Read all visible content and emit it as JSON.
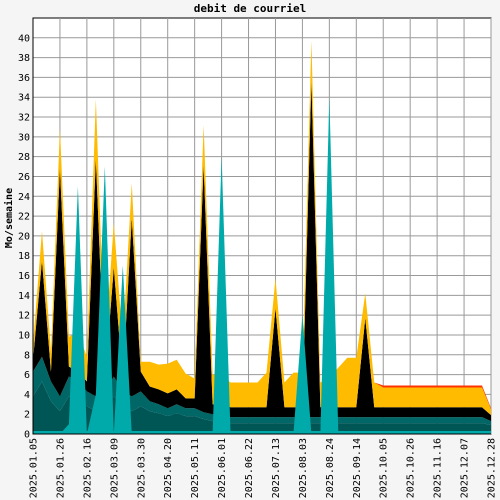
{
  "chart_data": {
    "type": "area",
    "title": "debit de courriel",
    "xlabel": "",
    "ylabel": "Mo/semaine",
    "ylim": [
      0,
      42
    ],
    "yticks": [
      0,
      2,
      4,
      6,
      8,
      10,
      12,
      14,
      16,
      18,
      20,
      22,
      24,
      26,
      28,
      30,
      32,
      34,
      36,
      38,
      40
    ],
    "grid": true,
    "stacked": true,
    "x_ticks": [
      "2025.01.05",
      "2025.01.26",
      "2025.02.16",
      "2025.03.09",
      "2025.03.30",
      "2025.04.20",
      "2025.05.11",
      "2025.06.01",
      "2025.06.22",
      "2025.07.13",
      "2025.08.03",
      "2025.08.24",
      "2025.09.14",
      "2025.10.05",
      "2025.10.26",
      "2025.11.16",
      "2025.12.07",
      "2025.12.28"
    ],
    "x": [
      "2025.01.05",
      "2025.01.12",
      "2025.01.19",
      "2025.01.26",
      "2025.02.02",
      "2025.02.09",
      "2025.02.16",
      "2025.02.23",
      "2025.03.02",
      "2025.03.09",
      "2025.03.16",
      "2025.03.23",
      "2025.03.30",
      "2025.04.06",
      "2025.04.13",
      "2025.04.20",
      "2025.04.27",
      "2025.05.04",
      "2025.05.11",
      "2025.05.18",
      "2025.05.25",
      "2025.06.01",
      "2025.06.08",
      "2025.06.15",
      "2025.06.22",
      "2025.06.29",
      "2025.07.06",
      "2025.07.13",
      "2025.07.20",
      "2025.07.27",
      "2025.08.03",
      "2025.08.10",
      "2025.08.17",
      "2025.08.24",
      "2025.08.31",
      "2025.09.07",
      "2025.09.14",
      "2025.09.21",
      "2025.09.28",
      "2025.10.05",
      "2025.10.12",
      "2025.10.19",
      "2025.10.26",
      "2025.11.02",
      "2025.11.09",
      "2025.11.16",
      "2025.11.23",
      "2025.11.30",
      "2025.12.07",
      "2025.12.14",
      "2025.12.21",
      "2025.12.28"
    ],
    "series": [
      {
        "color": "#00aaaa",
        "values": [
          0.3,
          0.3,
          0.3,
          0.3,
          0.3,
          0.3,
          0.3,
          0.3,
          0.3,
          0.3,
          0.3,
          0.3,
          0.3,
          0.3,
          0.3,
          0.3,
          0.3,
          0.3,
          0.3,
          0.3,
          0.3,
          0.3,
          0.3,
          0.3,
          0.3,
          0.3,
          0.3,
          0.3,
          0.3,
          0.3,
          0.3,
          0.3,
          0.3,
          0.3,
          0.3,
          0.3,
          0.3,
          0.3,
          0.3,
          0.3,
          0.3,
          0.3,
          0.3,
          0.3,
          0.3,
          0.3,
          0.3,
          0.3,
          0.3,
          0.3,
          0.3,
          0.3
        ]
      },
      {
        "color": "#005555",
        "values": [
          3.5,
          5.0,
          3.0,
          2.0,
          3.5,
          3.0,
          2.5,
          2.0,
          2.5,
          3.5,
          2.5,
          2.0,
          2.5,
          2.0,
          1.8,
          1.5,
          1.8,
          1.5,
          1.5,
          1.2,
          1.0,
          1.0,
          0.8,
          0.8,
          0.8,
          0.8,
          0.8,
          0.8,
          0.8,
          0.8,
          0.8,
          0.8,
          0.8,
          0.8,
          0.8,
          0.8,
          0.8,
          0.8,
          0.8,
          0.8,
          0.8,
          0.8,
          0.8,
          0.8,
          0.8,
          0.8,
          0.8,
          0.8,
          0.8,
          0.8,
          0.8,
          0.6
        ]
      },
      {
        "color": "#006666",
        "values": [
          2.5,
          2.5,
          2.0,
          1.5,
          2.0,
          2.0,
          1.5,
          1.5,
          1.5,
          2.0,
          1.5,
          1.5,
          1.5,
          1.0,
          0.9,
          0.8,
          0.9,
          0.8,
          0.8,
          0.7,
          0.7,
          0.6,
          0.6,
          0.6,
          0.6,
          0.6,
          0.6,
          0.6,
          0.6,
          0.6,
          0.6,
          0.6,
          0.6,
          0.6,
          0.6,
          0.6,
          0.6,
          0.6,
          0.6,
          0.6,
          0.6,
          0.6,
          0.6,
          0.6,
          0.6,
          0.6,
          0.6,
          0.6,
          0.6,
          0.6,
          0.6,
          0.4
        ]
      },
      {
        "color": "#000000",
        "values": [
          1.2,
          9.7,
          1.0,
          23.0,
          1.0,
          1.0,
          1.0,
          24.0,
          1.0,
          11.0,
          1.0,
          18.0,
          2.0,
          1.5,
          1.5,
          1.5,
          1.5,
          1.0,
          1.0,
          25.0,
          1.0,
          1.0,
          1.0,
          1.0,
          1.0,
          1.0,
          1.0,
          11.0,
          1.0,
          1.0,
          1.0,
          34.0,
          1.0,
          1.0,
          1.0,
          1.0,
          1.0,
          10.0,
          1.0,
          1.0,
          1.0,
          1.0,
          1.0,
          1.0,
          1.0,
          1.0,
          1.0,
          1.0,
          1.0,
          1.0,
          1.0,
          0.6
        ]
      },
      {
        "color": "#ffbb00",
        "values": [
          1.5,
          3.0,
          2.0,
          4.0,
          3.0,
          4.0,
          2.5,
          6.0,
          3.0,
          4.5,
          4.0,
          3.5,
          1.0,
          2.5,
          2.5,
          3.0,
          3.0,
          2.5,
          2.0,
          4.0,
          3.0,
          3.0,
          2.5,
          2.5,
          2.5,
          2.5,
          3.5,
          3.0,
          2.5,
          3.5,
          3.5,
          4.0,
          2.5,
          3.0,
          4.0,
          5.0,
          5.0,
          2.5,
          2.5,
          2.0,
          2.0,
          2.0,
          2.0,
          2.0,
          2.0,
          2.0,
          2.0,
          2.0,
          2.0,
          2.0,
          2.0,
          0.6
        ]
      },
      {
        "color": "#ff3300",
        "values": [
          0.0,
          0.0,
          0.0,
          0.0,
          0.0,
          0.0,
          0.0,
          0.0,
          0.0,
          0.0,
          0.0,
          0.0,
          0.0,
          0.0,
          0.0,
          0.0,
          0.0,
          0.0,
          0.0,
          0.0,
          0.0,
          0.0,
          0.0,
          0.0,
          0.0,
          0.0,
          0.0,
          0.0,
          0.0,
          0.0,
          0.0,
          0.0,
          0.0,
          0.0,
          0.0,
          0.0,
          0.0,
          0.0,
          0.0,
          0.2,
          0.2,
          0.2,
          0.2,
          0.2,
          0.2,
          0.2,
          0.2,
          0.2,
          0.2,
          0.2,
          0.2,
          0.1
        ]
      }
    ],
    "overlay": {
      "color": "#00aaaa",
      "values": [
        0,
        0,
        0,
        0,
        1,
        25,
        0,
        4,
        27,
        0,
        17,
        0,
        0,
        0,
        0,
        0,
        0,
        0,
        0,
        0,
        0,
        28,
        0,
        0,
        0,
        0,
        0,
        0,
        0,
        0,
        12,
        0,
        0,
        34,
        0,
        0,
        0,
        0,
        0,
        0,
        0,
        0,
        0,
        0,
        0,
        0,
        0,
        0,
        0,
        0,
        0,
        0
      ]
    }
  }
}
